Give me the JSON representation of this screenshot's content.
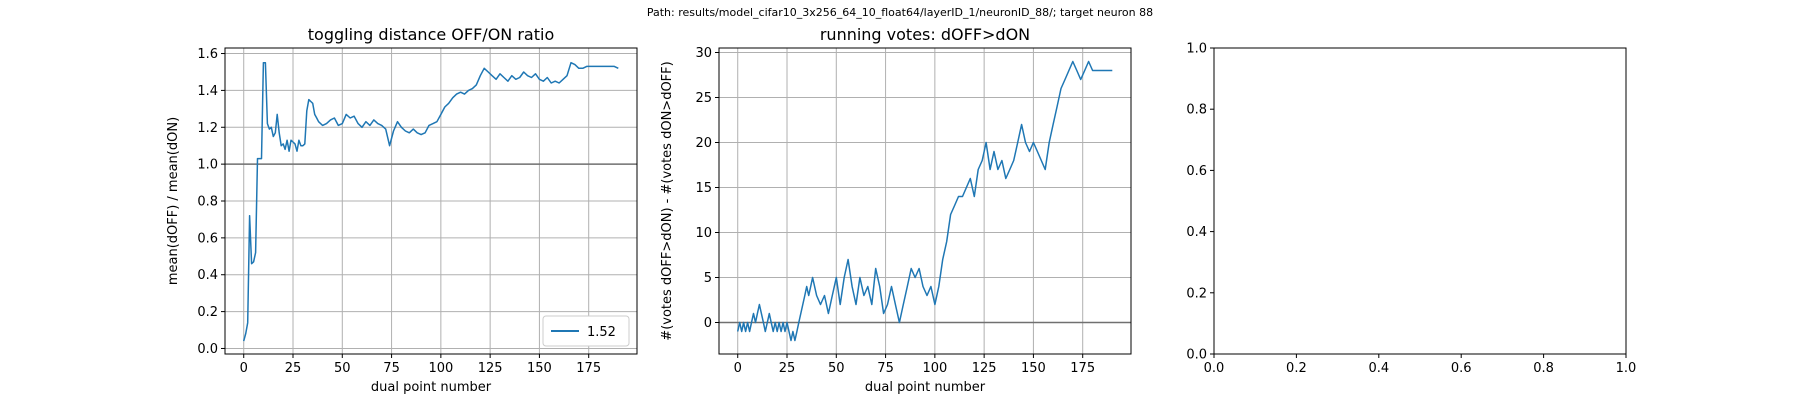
{
  "suptitle": "Path: results/model_cifar10_3x256_64_10_float64/layerID_1/neuronID_88/; target neuron 88",
  "colors": {
    "line": "#1f77b4",
    "hline": "#707070",
    "grid": "#b0b0b0",
    "axes": "#000000"
  },
  "chart_data": [
    {
      "type": "line",
      "title": "toggling distance OFF/ON ratio",
      "xlabel": "dual point number",
      "ylabel": "mean(dOFF) / mean(dON)",
      "xlim": [
        -9.5,
        199.5
      ],
      "ylim": [
        -0.03,
        1.63
      ],
      "xticks": [
        0,
        25,
        50,
        75,
        100,
        125,
        150,
        175
      ],
      "xticklabels": [
        "0",
        "25",
        "50",
        "75",
        "100",
        "125",
        "150",
        "175"
      ],
      "yticks": [
        0.0,
        0.2,
        0.4,
        0.6,
        0.8,
        1.0,
        1.2,
        1.4,
        1.6
      ],
      "yticklabels": [
        "0.0",
        "0.2",
        "0.4",
        "0.6",
        "0.8",
        "1.0",
        "1.2",
        "1.4",
        "1.6"
      ],
      "grid": true,
      "hline": 1.0,
      "legend": {
        "placement": "lower-right",
        "entries": [
          "1.52"
        ]
      },
      "series": [
        {
          "name": "1.52",
          "x": [
            0,
            1,
            2,
            3,
            4,
            5,
            6,
            7,
            8,
            9,
            10,
            11,
            12,
            13,
            14,
            15,
            16,
            17,
            18,
            19,
            20,
            21,
            22,
            23,
            24,
            25,
            26,
            27,
            28,
            29,
            30,
            31,
            32,
            33,
            34,
            35,
            36,
            37,
            38,
            39,
            40,
            42,
            44,
            46,
            48,
            50,
            52,
            54,
            56,
            58,
            60,
            62,
            64,
            66,
            68,
            70,
            72,
            74,
            76,
            78,
            80,
            82,
            84,
            86,
            88,
            90,
            92,
            94,
            96,
            98,
            100,
            102,
            104,
            106,
            108,
            110,
            112,
            114,
            116,
            118,
            120,
            122,
            124,
            126,
            128,
            130,
            132,
            134,
            136,
            138,
            140,
            142,
            144,
            146,
            148,
            150,
            152,
            154,
            156,
            158,
            160,
            162,
            164,
            166,
            168,
            170,
            172,
            174,
            176,
            178,
            180,
            182,
            184,
            186,
            188,
            190
          ],
          "y": [
            0.04,
            0.08,
            0.14,
            0.72,
            0.46,
            0.47,
            0.52,
            1.03,
            1.03,
            1.03,
            1.55,
            1.55,
            1.22,
            1.19,
            1.2,
            1.15,
            1.17,
            1.27,
            1.17,
            1.1,
            1.11,
            1.08,
            1.13,
            1.07,
            1.13,
            1.12,
            1.11,
            1.07,
            1.13,
            1.1,
            1.1,
            1.11,
            1.29,
            1.35,
            1.34,
            1.33,
            1.27,
            1.25,
            1.23,
            1.22,
            1.21,
            1.22,
            1.24,
            1.25,
            1.21,
            1.22,
            1.27,
            1.25,
            1.26,
            1.22,
            1.2,
            1.23,
            1.21,
            1.24,
            1.22,
            1.21,
            1.19,
            1.1,
            1.18,
            1.23,
            1.2,
            1.18,
            1.17,
            1.19,
            1.17,
            1.16,
            1.17,
            1.21,
            1.22,
            1.23,
            1.27,
            1.31,
            1.33,
            1.36,
            1.38,
            1.39,
            1.38,
            1.4,
            1.41,
            1.43,
            1.48,
            1.52,
            1.5,
            1.48,
            1.46,
            1.49,
            1.47,
            1.45,
            1.48,
            1.46,
            1.47,
            1.5,
            1.48,
            1.47,
            1.49,
            1.46,
            1.45,
            1.47,
            1.44,
            1.45,
            1.44,
            1.46,
            1.48,
            1.55,
            1.54,
            1.52,
            1.52,
            1.53,
            1.53,
            1.53,
            1.53,
            1.53,
            1.53,
            1.53,
            1.53,
            1.52
          ]
        }
      ]
    },
    {
      "type": "line",
      "title": "running votes: dOFF>dON",
      "xlabel": "dual point number",
      "ylabel": "#(votes dOFF>dON) - #(votes dON>dOFF)",
      "xlim": [
        -9.5,
        199.5
      ],
      "ylim": [
        -3.5,
        30.5
      ],
      "xticks": [
        0,
        25,
        50,
        75,
        100,
        125,
        150,
        175
      ],
      "xticklabels": [
        "0",
        "25",
        "50",
        "75",
        "100",
        "125",
        "150",
        "175"
      ],
      "yticks": [
        0,
        5,
        10,
        15,
        20,
        25,
        30
      ],
      "yticklabels": [
        "0",
        "5",
        "10",
        "15",
        "20",
        "25",
        "30"
      ],
      "grid": true,
      "hline": 0,
      "legend": null,
      "series": [
        {
          "name": "",
          "x": [
            0,
            1,
            2,
            3,
            4,
            5,
            6,
            7,
            8,
            9,
            10,
            11,
            12,
            13,
            14,
            15,
            16,
            17,
            18,
            19,
            20,
            21,
            22,
            23,
            24,
            25,
            26,
            27,
            28,
            29,
            30,
            31,
            32,
            33,
            34,
            35,
            36,
            37,
            38,
            39,
            40,
            42,
            44,
            46,
            48,
            50,
            52,
            54,
            56,
            58,
            60,
            62,
            64,
            66,
            68,
            70,
            72,
            74,
            76,
            78,
            80,
            82,
            84,
            86,
            88,
            90,
            92,
            94,
            96,
            98,
            100,
            102,
            104,
            106,
            108,
            110,
            112,
            114,
            116,
            118,
            120,
            122,
            124,
            126,
            128,
            130,
            132,
            134,
            136,
            138,
            140,
            142,
            144,
            146,
            148,
            150,
            152,
            154,
            156,
            158,
            160,
            162,
            164,
            166,
            168,
            170,
            172,
            174,
            176,
            178,
            180,
            182,
            184,
            186,
            188,
            190
          ],
          "y": [
            -1,
            0,
            -1,
            0,
            -1,
            0,
            -1,
            0,
            1,
            0,
            1,
            2,
            1,
            0,
            -1,
            0,
            1,
            0,
            -1,
            0,
            -1,
            0,
            -1,
            0,
            -1,
            0,
            -1,
            -2,
            -1,
            -2,
            -1,
            0,
            1,
            2,
            3,
            4,
            3,
            4,
            5,
            4,
            3,
            2,
            3,
            1,
            3,
            5,
            2,
            5,
            7,
            4,
            2,
            5,
            3,
            4,
            2,
            6,
            4,
            1,
            2,
            4,
            2,
            0,
            2,
            4,
            6,
            5,
            6,
            4,
            3,
            4,
            2,
            4,
            7,
            9,
            12,
            13,
            14,
            14,
            15,
            16,
            14,
            17,
            18,
            20,
            17,
            19,
            17,
            18,
            16,
            17,
            18,
            20,
            22,
            20,
            19,
            20,
            19,
            18,
            17,
            20,
            22,
            24,
            26,
            27,
            28,
            29,
            28,
            27,
            28,
            29,
            28,
            28,
            28,
            28,
            28,
            28
          ]
        }
      ]
    },
    {
      "type": "line",
      "title": "",
      "xlabel": "",
      "ylabel": "",
      "xlim": [
        0.0,
        1.0
      ],
      "ylim": [
        0.0,
        1.0
      ],
      "xticks": [
        0.0,
        0.2,
        0.4,
        0.6,
        0.8,
        1.0
      ],
      "xticklabels": [
        "0.0",
        "0.2",
        "0.4",
        "0.6",
        "0.8",
        "1.0"
      ],
      "yticks": [
        0.0,
        0.2,
        0.4,
        0.6,
        0.8,
        1.0
      ],
      "yticklabels": [
        "0.0",
        "0.2",
        "0.4",
        "0.6",
        "0.8",
        "1.0"
      ],
      "grid": false,
      "hline": null,
      "legend": null,
      "series": []
    }
  ]
}
